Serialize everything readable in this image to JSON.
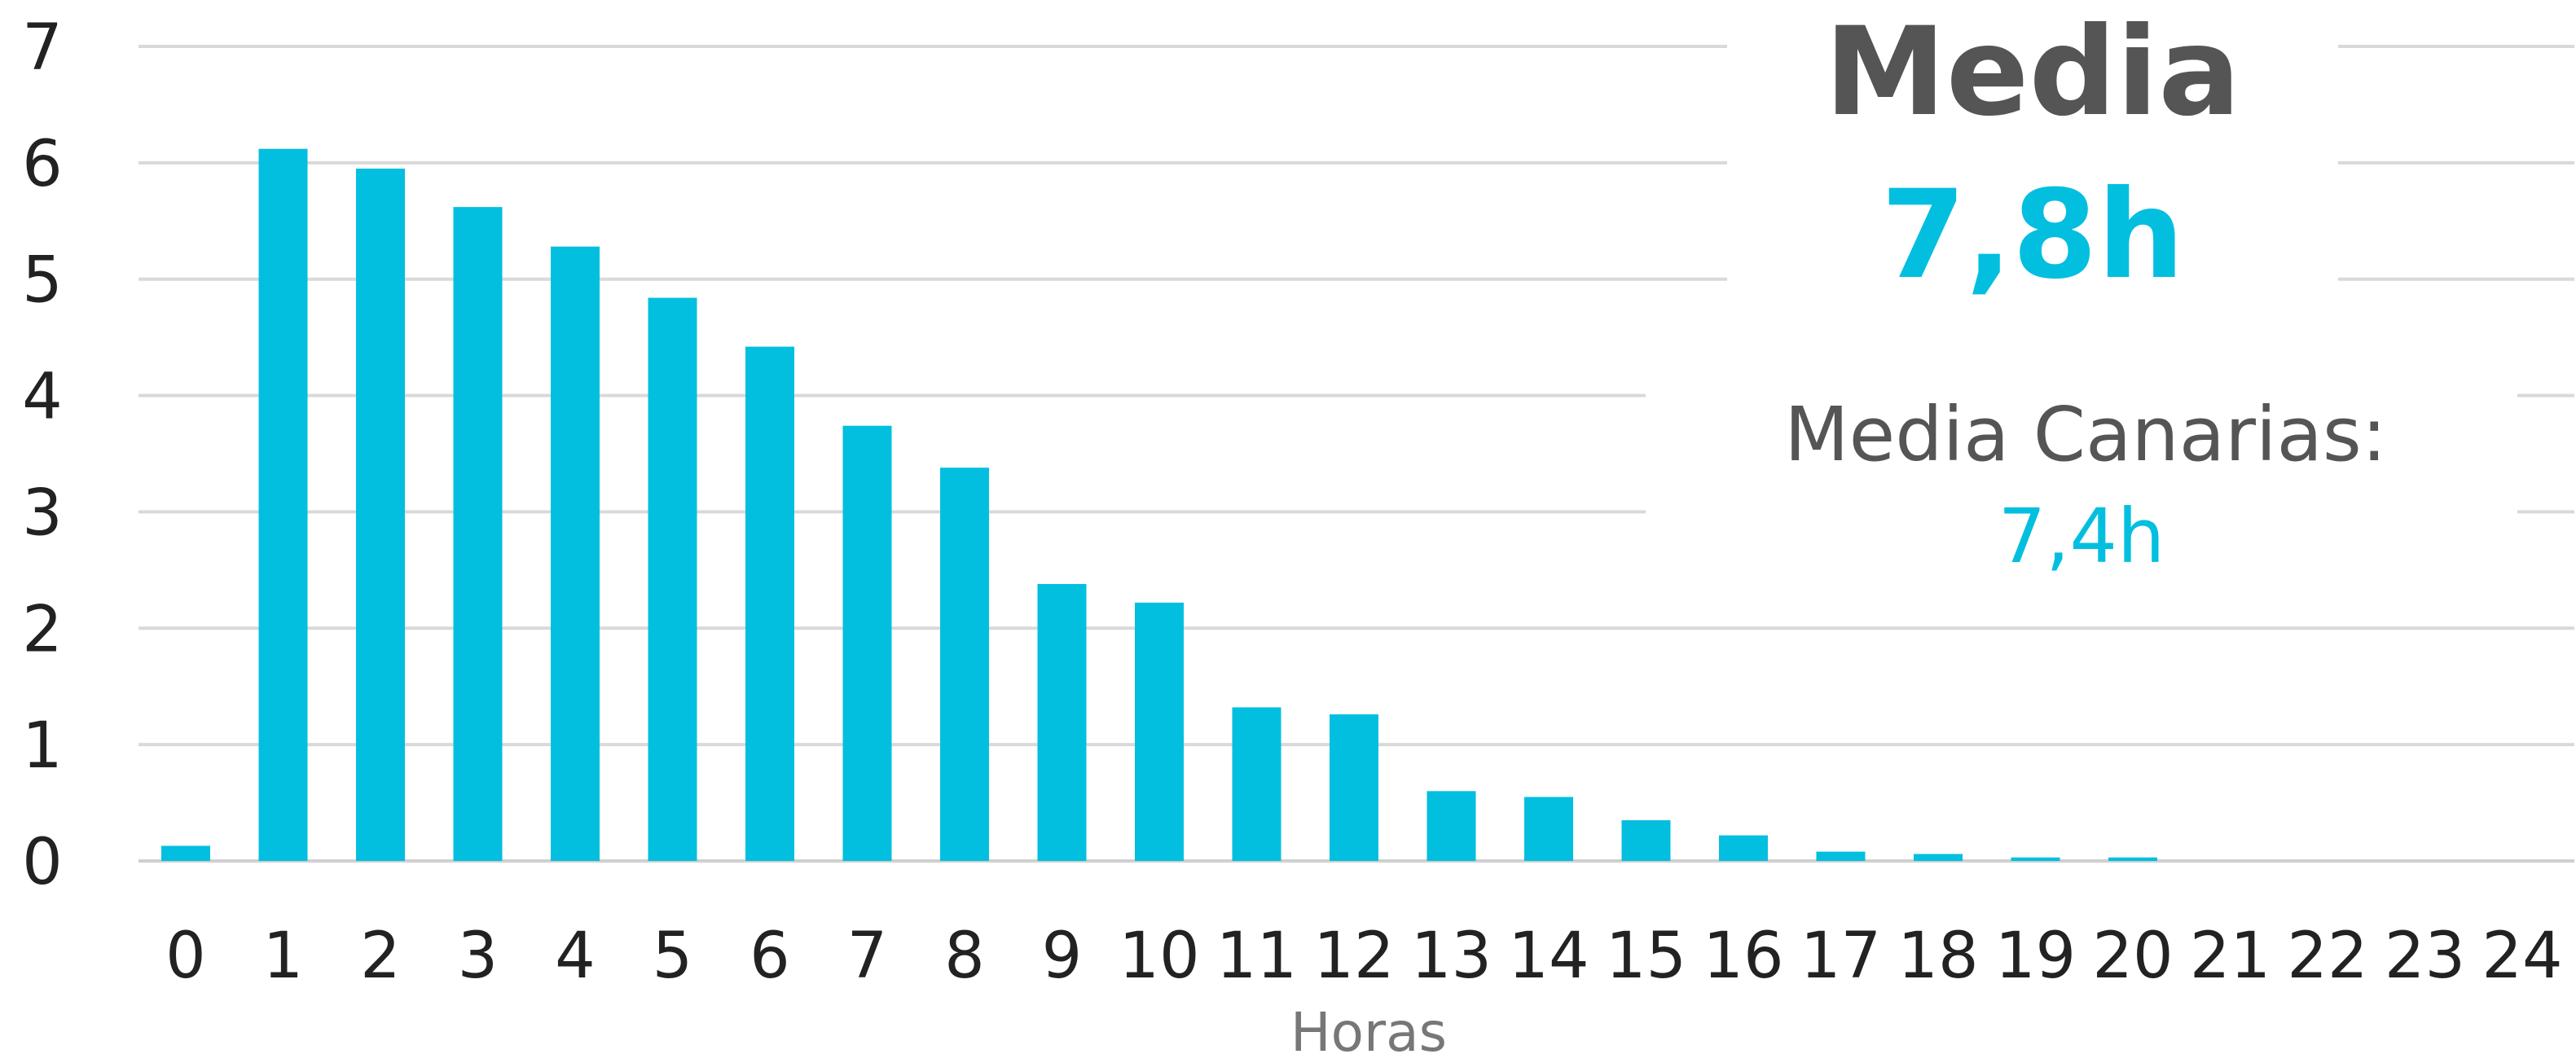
{
  "chart_data": {
    "type": "bar",
    "categories": [
      "0",
      "1",
      "2",
      "3",
      "4",
      "5",
      "6",
      "7",
      "8",
      "9",
      "10",
      "11",
      "12",
      "13",
      "14",
      "15",
      "16",
      "17",
      "18",
      "19",
      "20",
      "21",
      "22",
      "23",
      "24"
    ],
    "values": [
      0.13,
      6.12,
      5.95,
      5.62,
      5.28,
      4.84,
      4.42,
      3.74,
      3.38,
      2.38,
      2.22,
      1.32,
      1.26,
      0.6,
      0.55,
      0.35,
      0.22,
      0.08,
      0.06,
      0.03,
      0.03,
      0,
      0,
      0,
      0
    ],
    "xlabel": "Horas",
    "ylabel": "",
    "ylim": [
      0,
      7
    ],
    "yticks": [
      "0",
      "1",
      "2",
      "3",
      "4",
      "5",
      "6",
      "7"
    ],
    "grid": true,
    "bar_color": "#03bfdf"
  },
  "summary": {
    "title": "Media",
    "value": "7,8h",
    "reference_label": "Media Canarias:",
    "reference_value": "7,4h"
  }
}
